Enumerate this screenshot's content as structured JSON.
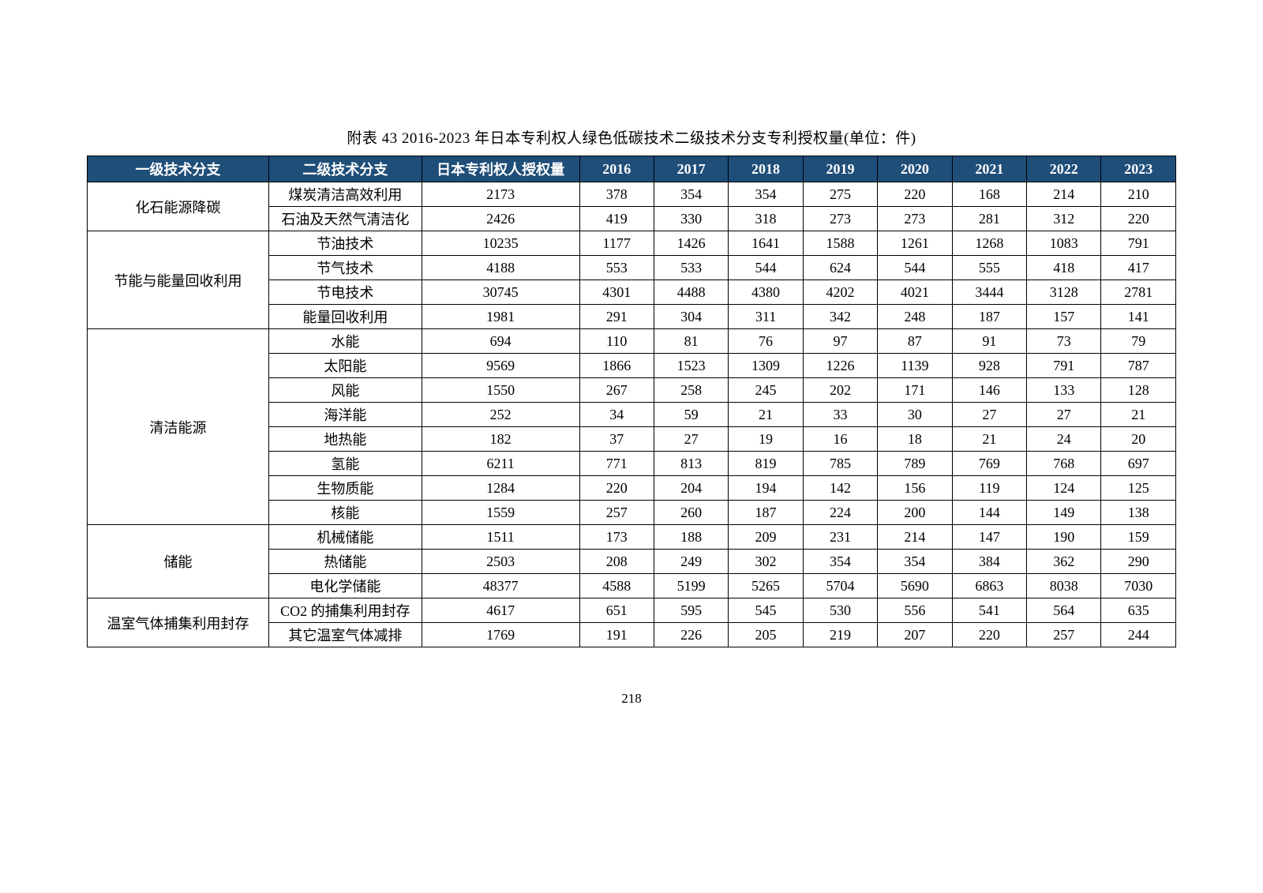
{
  "caption": "附表 43 2016-2023 年日本专利权人绿色低碳技术二级技术分支专利授权量(单位：件)",
  "pagenum": "218",
  "table": {
    "header_bg": "#1f4e79",
    "header_fg": "#ffffff",
    "border_color": "#000000",
    "columns": [
      "一级技术分支",
      "二级技术分支",
      "日本专利权人授权量",
      "2016",
      "2017",
      "2018",
      "2019",
      "2020",
      "2021",
      "2022",
      "2023"
    ],
    "groups": [
      {
        "l1": "化石能源降碳",
        "rows": [
          {
            "l2": "煤炭清洁高效利用",
            "total": "2173",
            "y": [
              "378",
              "354",
              "354",
              "275",
              "220",
              "168",
              "214",
              "210"
            ]
          },
          {
            "l2": "石油及天然气清洁化",
            "total": "2426",
            "y": [
              "419",
              "330",
              "318",
              "273",
              "273",
              "281",
              "312",
              "220"
            ]
          }
        ]
      },
      {
        "l1": "节能与能量回收利用",
        "rows": [
          {
            "l2": "节油技术",
            "total": "10235",
            "y": [
              "1177",
              "1426",
              "1641",
              "1588",
              "1261",
              "1268",
              "1083",
              "791"
            ]
          },
          {
            "l2": "节气技术",
            "total": "4188",
            "y": [
              "553",
              "533",
              "544",
              "624",
              "544",
              "555",
              "418",
              "417"
            ]
          },
          {
            "l2": "节电技术",
            "total": "30745",
            "y": [
              "4301",
              "4488",
              "4380",
              "4202",
              "4021",
              "3444",
              "3128",
              "2781"
            ]
          },
          {
            "l2": "能量回收利用",
            "total": "1981",
            "y": [
              "291",
              "304",
              "311",
              "342",
              "248",
              "187",
              "157",
              "141"
            ]
          }
        ]
      },
      {
        "l1": "清洁能源",
        "rows": [
          {
            "l2": "水能",
            "total": "694",
            "y": [
              "110",
              "81",
              "76",
              "97",
              "87",
              "91",
              "73",
              "79"
            ]
          },
          {
            "l2": "太阳能",
            "total": "9569",
            "y": [
              "1866",
              "1523",
              "1309",
              "1226",
              "1139",
              "928",
              "791",
              "787"
            ]
          },
          {
            "l2": "风能",
            "total": "1550",
            "y": [
              "267",
              "258",
              "245",
              "202",
              "171",
              "146",
              "133",
              "128"
            ]
          },
          {
            "l2": "海洋能",
            "total": "252",
            "y": [
              "34",
              "59",
              "21",
              "33",
              "30",
              "27",
              "27",
              "21"
            ]
          },
          {
            "l2": "地热能",
            "total": "182",
            "y": [
              "37",
              "27",
              "19",
              "16",
              "18",
              "21",
              "24",
              "20"
            ]
          },
          {
            "l2": "氢能",
            "total": "6211",
            "y": [
              "771",
              "813",
              "819",
              "785",
              "789",
              "769",
              "768",
              "697"
            ]
          },
          {
            "l2": "生物质能",
            "total": "1284",
            "y": [
              "220",
              "204",
              "194",
              "142",
              "156",
              "119",
              "124",
              "125"
            ]
          },
          {
            "l2": "核能",
            "total": "1559",
            "y": [
              "257",
              "260",
              "187",
              "224",
              "200",
              "144",
              "149",
              "138"
            ]
          }
        ]
      },
      {
        "l1": "储能",
        "rows": [
          {
            "l2": "机械储能",
            "total": "1511",
            "y": [
              "173",
              "188",
              "209",
              "231",
              "214",
              "147",
              "190",
              "159"
            ]
          },
          {
            "l2": "热储能",
            "total": "2503",
            "y": [
              "208",
              "249",
              "302",
              "354",
              "354",
              "384",
              "362",
              "290"
            ]
          },
          {
            "l2": "电化学储能",
            "total": "48377",
            "y": [
              "4588",
              "5199",
              "5265",
              "5704",
              "5690",
              "6863",
              "8038",
              "7030"
            ]
          }
        ]
      },
      {
        "l1": "温室气体捕集利用封存",
        "rows": [
          {
            "l2": "CO2 的捕集利用封存",
            "total": "4617",
            "y": [
              "651",
              "595",
              "545",
              "530",
              "556",
              "541",
              "564",
              "635"
            ]
          },
          {
            "l2": "其它温室气体减排",
            "total": "1769",
            "y": [
              "191",
              "226",
              "205",
              "219",
              "207",
              "220",
              "257",
              "244"
            ]
          }
        ]
      }
    ]
  }
}
